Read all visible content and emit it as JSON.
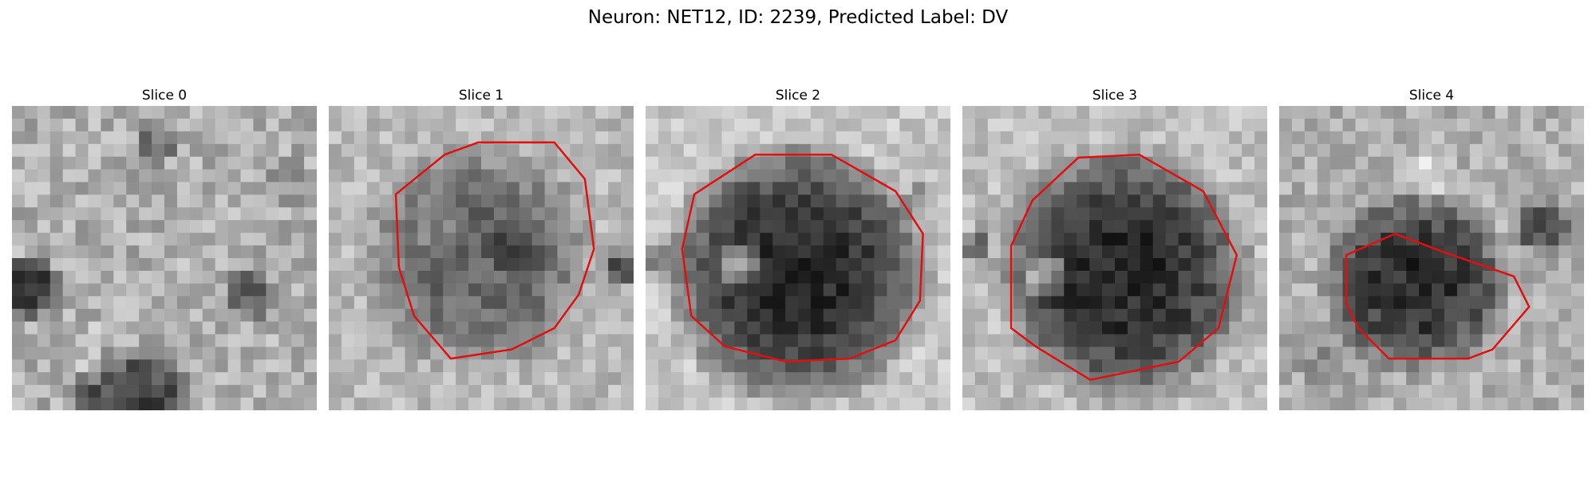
{
  "figure": {
    "title": "Neuron: NET12, ID: 2239, Predicted Label: DV"
  },
  "outline_color": "#e01010",
  "panels": [
    {
      "title": "Slice 0",
      "has_outline": false
    },
    {
      "title": "Slice 1",
      "has_outline": true
    },
    {
      "title": "Slice 2",
      "has_outline": true
    },
    {
      "title": "Slice 3",
      "has_outline": true
    },
    {
      "title": "Slice 4",
      "has_outline": true
    }
  ]
}
